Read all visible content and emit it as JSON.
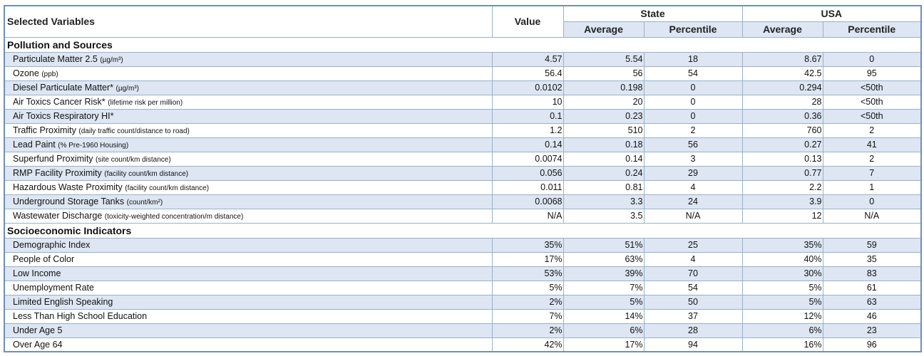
{
  "headers": {
    "selected": "Selected Variables",
    "value": "Value",
    "state": "State",
    "usa": "USA",
    "average": "Average",
    "percentile": "Percentile"
  },
  "sections": [
    {
      "title": "Pollution and Sources",
      "rows": [
        {
          "name": "Particulate Matter 2.5",
          "unit": "(µg/m³)",
          "value": "4.57",
          "state_avg": "5.54",
          "state_pct": "18",
          "usa_avg": "8.67",
          "usa_pct": "0"
        },
        {
          "name": "Ozone",
          "unit": "(ppb)",
          "value": "56.4",
          "state_avg": "56",
          "state_pct": "54",
          "usa_avg": "42.5",
          "usa_pct": "95"
        },
        {
          "name": "Diesel Particulate Matter*",
          "unit": "(µg/m³)",
          "value": "0.0102",
          "state_avg": "0.198",
          "state_pct": "0",
          "usa_avg": "0.294",
          "usa_pct": "<50th"
        },
        {
          "name": "Air Toxics Cancer Risk*",
          "unit": "(lifetime risk per million)",
          "value": "10",
          "state_avg": "20",
          "state_pct": "0",
          "usa_avg": "28",
          "usa_pct": "<50th"
        },
        {
          "name": "Air Toxics Respiratory HI*",
          "unit": "",
          "value": "0.1",
          "state_avg": "0.23",
          "state_pct": "0",
          "usa_avg": "0.36",
          "usa_pct": "<50th"
        },
        {
          "name": "Traffic Proximity",
          "unit": "(daily traffic count/distance to road)",
          "value": "1.2",
          "state_avg": "510",
          "state_pct": "2",
          "usa_avg": "760",
          "usa_pct": "2"
        },
        {
          "name": "Lead Paint",
          "unit": "(% Pre-1960 Housing)",
          "value": "0.14",
          "state_avg": "0.18",
          "state_pct": "56",
          "usa_avg": "0.27",
          "usa_pct": "41"
        },
        {
          "name": "Superfund Proximity",
          "unit": "(site count/km distance)",
          "value": "0.0074",
          "state_avg": "0.14",
          "state_pct": "3",
          "usa_avg": "0.13",
          "usa_pct": "2"
        },
        {
          "name": "RMP Facility Proximity",
          "unit": "(facility count/km distance)",
          "value": "0.056",
          "state_avg": "0.24",
          "state_pct": "29",
          "usa_avg": "0.77",
          "usa_pct": "7"
        },
        {
          "name": "Hazardous Waste Proximity",
          "unit": "(facility count/km distance)",
          "value": "0.011",
          "state_avg": "0.81",
          "state_pct": "4",
          "usa_avg": "2.2",
          "usa_pct": "1"
        },
        {
          "name": "Underground Storage Tanks",
          "unit": "(count/km²)",
          "value": "0.0068",
          "state_avg": "3.3",
          "state_pct": "24",
          "usa_avg": "3.9",
          "usa_pct": "0"
        },
        {
          "name": "Wastewater Discharge",
          "unit": "(toxicity-weighted concentration/m distance)",
          "value": "N/A",
          "state_avg": "3.5",
          "state_pct": "N/A",
          "usa_avg": "12",
          "usa_pct": "N/A"
        }
      ]
    },
    {
      "title": "Socioeconomic Indicators",
      "rows": [
        {
          "name": "Demographic Index",
          "unit": "",
          "value": "35%",
          "state_avg": "51%",
          "state_pct": "25",
          "usa_avg": "35%",
          "usa_pct": "59"
        },
        {
          "name": "People of Color",
          "unit": "",
          "value": "17%",
          "state_avg": "63%",
          "state_pct": "4",
          "usa_avg": "40%",
          "usa_pct": "35"
        },
        {
          "name": "Low Income",
          "unit": "",
          "value": "53%",
          "state_avg": "39%",
          "state_pct": "70",
          "usa_avg": "30%",
          "usa_pct": "83"
        },
        {
          "name": "Unemployment Rate",
          "unit": "",
          "value": "5%",
          "state_avg": "7%",
          "state_pct": "54",
          "usa_avg": "5%",
          "usa_pct": "61"
        },
        {
          "name": "Limited English Speaking",
          "unit": "",
          "value": "2%",
          "state_avg": "5%",
          "state_pct": "50",
          "usa_avg": "5%",
          "usa_pct": "63"
        },
        {
          "name": "Less Than High School Education",
          "unit": "",
          "value": "7%",
          "state_avg": "14%",
          "state_pct": "37",
          "usa_avg": "12%",
          "usa_pct": "46"
        },
        {
          "name": "Under Age 5",
          "unit": "",
          "value": "2%",
          "state_avg": "6%",
          "state_pct": "28",
          "usa_avg": "6%",
          "usa_pct": "23"
        },
        {
          "name": "Over Age 64",
          "unit": "",
          "value": "42%",
          "state_avg": "17%",
          "state_pct": "94",
          "usa_avg": "16%",
          "usa_pct": "96"
        }
      ]
    }
  ]
}
